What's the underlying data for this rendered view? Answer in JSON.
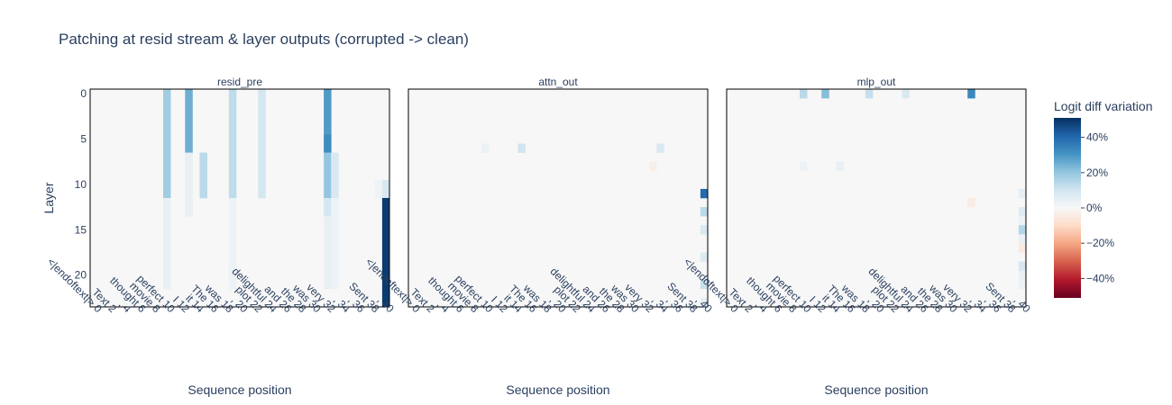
{
  "title": "Patching at resid stream & layer outputs (corrupted -> clean)",
  "colorbar": {
    "title": "Logit diff variation",
    "ticks": [
      "40%",
      "20%",
      "0%",
      "−20%",
      "−40%"
    ],
    "tick_values": [
      40,
      20,
      0,
      -20,
      -40
    ],
    "range": [
      -51,
      51
    ],
    "colorscale": [
      "#67001f",
      "#b2182b",
      "#d6604d",
      "#f4a582",
      "#fddbc7",
      "#f7f7f7",
      "#d1e5f0",
      "#92c5de",
      "#4393c3",
      "#2166ac",
      "#053061"
    ]
  },
  "chart_data": {
    "type": "heatmap",
    "ylabel": "Layer",
    "xlabel": "Sequence position",
    "y_ticks": [
      0,
      5,
      10,
      15,
      20
    ],
    "n_layers": 24,
    "n_positions": 41,
    "x_tick_labels": [
      "<|endoftext|> 0",
      "Text 2",
      ", 4",
      "thought 6",
      "movie 8",
      "perfect 10",
      "I 12",
      "it 14",
      "The 16",
      "was 18",
      ", 20",
      "plot 22",
      "delightful 24",
      "and 26",
      "the 28",
      "was 30",
      "very 32",
      ", 34",
      ", 36",
      "Sent 38",
      ", 40"
    ],
    "panels": [
      {
        "name": "resid_pre",
        "cells": [
          {
            "pos": 10,
            "layers": [
              0,
              11
            ],
            "value": 18
          },
          {
            "pos": 10,
            "layers": [
              12,
              21
            ],
            "value": 4
          },
          {
            "pos": 13,
            "layers": [
              0,
              6
            ],
            "value": 25
          },
          {
            "pos": 13,
            "layers": [
              7,
              13
            ],
            "value": 4
          },
          {
            "pos": 15,
            "layers": [
              7,
              11
            ],
            "value": 14
          },
          {
            "pos": 19,
            "layers": [
              0,
              11
            ],
            "value": 13
          },
          {
            "pos": 19,
            "layers": [
              12,
              21
            ],
            "value": 3
          },
          {
            "pos": 23,
            "layers": [
              0,
              11
            ],
            "value": 9
          },
          {
            "pos": 32,
            "layers": [
              0,
              4
            ],
            "value": 29
          },
          {
            "pos": 32,
            "layers": [
              5,
              6
            ],
            "value": 32
          },
          {
            "pos": 32,
            "layers": [
              7,
              11
            ],
            "value": 20
          },
          {
            "pos": 32,
            "layers": [
              12,
              13
            ],
            "value": 9
          },
          {
            "pos": 32,
            "layers": [
              14,
              21
            ],
            "value": 4
          },
          {
            "pos": 33,
            "layers": [
              7,
              11
            ],
            "value": 8
          },
          {
            "pos": 33,
            "layers": [
              12,
              21
            ],
            "value": 3
          },
          {
            "pos": 39,
            "layers": [
              10,
              11
            ],
            "value": 2
          },
          {
            "pos": 40,
            "layers": [
              10,
              11
            ],
            "value": 8
          },
          {
            "pos": 40,
            "layers": [
              12,
              23
            ],
            "value": 49
          }
        ]
      },
      {
        "name": "attn_out",
        "cells": [
          {
            "pos": 10,
            "layers": [
              6,
              6
            ],
            "value": 3
          },
          {
            "pos": 15,
            "layers": [
              6,
              6
            ],
            "value": 10
          },
          {
            "pos": 34,
            "layers": [
              6,
              6
            ],
            "value": 8
          },
          {
            "pos": 33,
            "layers": [
              8,
              8
            ],
            "value": -3
          },
          {
            "pos": 40,
            "layers": [
              11,
              11
            ],
            "value": 40
          },
          {
            "pos": 40,
            "layers": [
              13,
              13
            ],
            "value": 14
          },
          {
            "pos": 40,
            "layers": [
              15,
              15
            ],
            "value": 8
          },
          {
            "pos": 40,
            "layers": [
              18,
              18
            ],
            "value": 7
          },
          {
            "pos": 40,
            "layers": [
              21,
              21
            ],
            "value": 12
          },
          {
            "pos": 40,
            "layers": [
              23,
              23
            ],
            "value": 5
          }
        ]
      },
      {
        "name": "mlp_out",
        "cells": [
          {
            "pos": 10,
            "layers": [
              0,
              0
            ],
            "value": 14
          },
          {
            "pos": 13,
            "layers": [
              0,
              0
            ],
            "value": 22
          },
          {
            "pos": 19,
            "layers": [
              0,
              0
            ],
            "value": 12
          },
          {
            "pos": 24,
            "layers": [
              0,
              0
            ],
            "value": 8
          },
          {
            "pos": 33,
            "layers": [
              0,
              0
            ],
            "value": 33
          },
          {
            "pos": 10,
            "layers": [
              8,
              8
            ],
            "value": 3
          },
          {
            "pos": 15,
            "layers": [
              8,
              8
            ],
            "value": 4
          },
          {
            "pos": 33,
            "layers": [
              12,
              12
            ],
            "value": -4
          },
          {
            "pos": 40,
            "layers": [
              11,
              11
            ],
            "value": 5
          },
          {
            "pos": 40,
            "layers": [
              13,
              13
            ],
            "value": 7
          },
          {
            "pos": 40,
            "layers": [
              14,
              14
            ],
            "value": 3
          },
          {
            "pos": 40,
            "layers": [
              15,
              15
            ],
            "value": 15
          },
          {
            "pos": 40,
            "layers": [
              16,
              16
            ],
            "value": 4
          },
          {
            "pos": 40,
            "layers": [
              17,
              17
            ],
            "value": -5
          },
          {
            "pos": 40,
            "layers": [
              19,
              19
            ],
            "value": 9
          },
          {
            "pos": 40,
            "layers": [
              20,
              20
            ],
            "value": 4
          },
          {
            "pos": 40,
            "layers": [
              21,
              21
            ],
            "value": 3
          }
        ]
      }
    ]
  }
}
